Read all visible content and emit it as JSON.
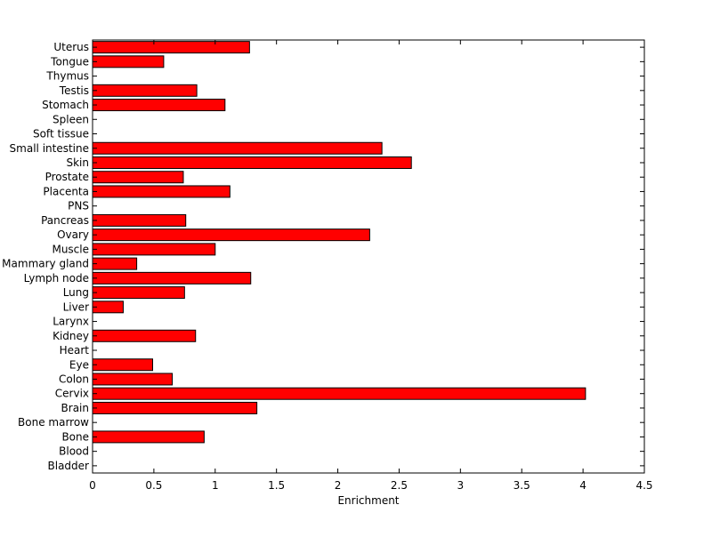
{
  "chart_data": {
    "type": "bar",
    "orientation": "horizontal",
    "title": "",
    "xlabel": "Enrichment",
    "ylabel": "",
    "xlim": [
      0,
      4.5
    ],
    "x_ticks": [
      "0",
      "0.5",
      "1",
      "1.5",
      "2",
      "2.5",
      "3",
      "3.5",
      "4",
      "4.5"
    ],
    "grid": false,
    "categories": [
      "Bladder",
      "Blood",
      "Bone",
      "Bone marrow",
      "Brain",
      "Cervix",
      "Colon",
      "Eye",
      "Heart",
      "Kidney",
      "Larynx",
      "Liver",
      "Lung",
      "Lymph node",
      "Mammary gland",
      "Muscle",
      "Ovary",
      "Pancreas",
      "PNS",
      "Placenta",
      "Prostate",
      "Skin",
      "Small intestine",
      "Soft tissue",
      "Spleen",
      "Stomach",
      "Testis",
      "Thymus",
      "Tongue",
      "Uterus"
    ],
    "values": [
      0,
      0,
      0.91,
      0,
      1.34,
      4.02,
      0.65,
      0.49,
      0,
      0.84,
      0,
      0.25,
      0.75,
      1.29,
      0.36,
      1.0,
      2.26,
      0.76,
      0,
      1.12,
      0.74,
      2.6,
      2.36,
      0,
      0,
      1.08,
      0.85,
      0,
      0.58,
      1.28
    ],
    "bar_color": "#ff0000",
    "bar_edge_color": "#000000"
  }
}
